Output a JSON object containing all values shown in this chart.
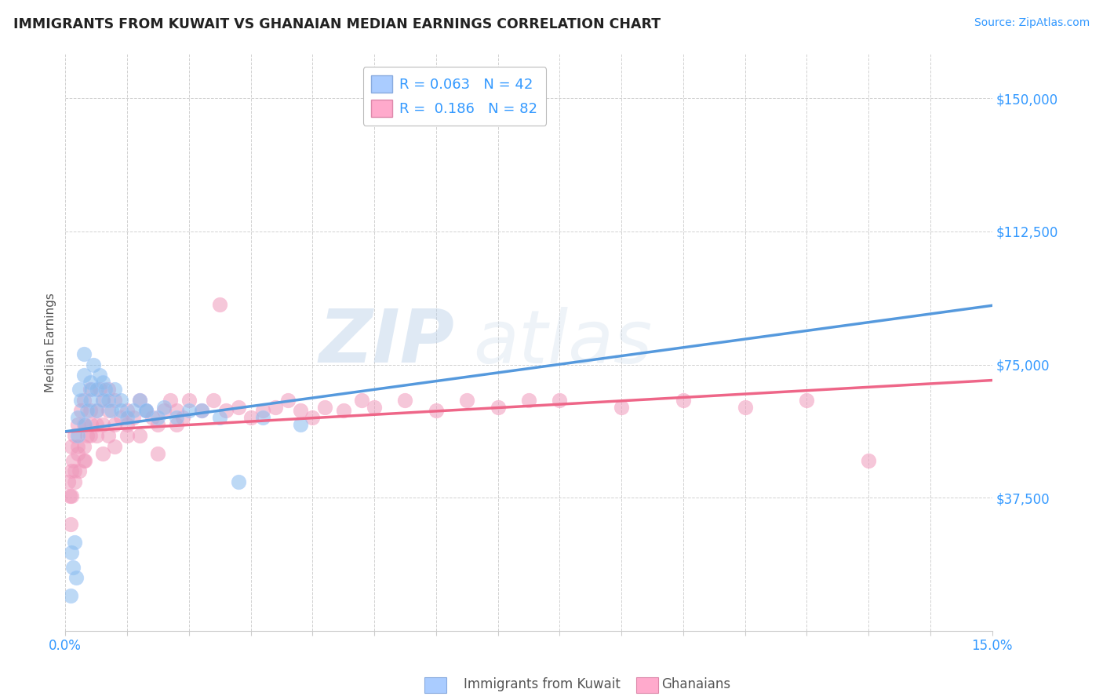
{
  "title": "IMMIGRANTS FROM KUWAIT VS GHANAIAN MEDIAN EARNINGS CORRELATION CHART",
  "source_text": "Source: ZipAtlas.com",
  "ylabel": "Median Earnings",
  "xlim": [
    0.0,
    0.15
  ],
  "ylim": [
    0,
    162500
  ],
  "yticks": [
    0,
    37500,
    75000,
    112500,
    150000
  ],
  "ytick_labels": [
    "",
    "$37,500",
    "$75,000",
    "$112,500",
    "$150,000"
  ],
  "background_color": "#ffffff",
  "grid_color": "#cccccc",
  "watermark_text1": "ZIP",
  "watermark_text2": "atlas",
  "color_kuwait": "#aaccff",
  "color_ghana": "#ffaacc",
  "line_color_kuwait": "#5599dd",
  "line_color_ghana": "#ee6688",
  "scatter_color_kuwait": "#88bbee",
  "scatter_color_ghana": "#ee99bb",
  "kuwait_x": [
    0.0008,
    0.001,
    0.0012,
    0.0015,
    0.0018,
    0.002,
    0.002,
    0.0022,
    0.0025,
    0.003,
    0.003,
    0.0032,
    0.0035,
    0.004,
    0.004,
    0.0042,
    0.0045,
    0.005,
    0.005,
    0.0055,
    0.006,
    0.006,
    0.0065,
    0.007,
    0.0075,
    0.008,
    0.009,
    0.009,
    0.01,
    0.011,
    0.012,
    0.013,
    0.013,
    0.015,
    0.016,
    0.018,
    0.02,
    0.022,
    0.025,
    0.028,
    0.032,
    0.038
  ],
  "kuwait_y": [
    10000,
    22000,
    18000,
    25000,
    15000,
    55000,
    60000,
    68000,
    65000,
    72000,
    78000,
    58000,
    62000,
    65000,
    70000,
    68000,
    75000,
    62000,
    68000,
    72000,
    65000,
    70000,
    68000,
    65000,
    62000,
    68000,
    62000,
    65000,
    60000,
    62000,
    65000,
    62000,
    62000,
    60000,
    63000,
    60000,
    62000,
    62000,
    60000,
    42000,
    60000,
    58000
  ],
  "ghana_x": [
    0.0005,
    0.0007,
    0.001,
    0.001,
    0.0012,
    0.0015,
    0.0015,
    0.002,
    0.002,
    0.0022,
    0.0025,
    0.003,
    0.003,
    0.003,
    0.0032,
    0.0035,
    0.004,
    0.004,
    0.0042,
    0.005,
    0.005,
    0.0055,
    0.006,
    0.006,
    0.007,
    0.007,
    0.008,
    0.008,
    0.009,
    0.01,
    0.01,
    0.011,
    0.012,
    0.013,
    0.014,
    0.015,
    0.016,
    0.017,
    0.018,
    0.019,
    0.02,
    0.022,
    0.024,
    0.026,
    0.028,
    0.03,
    0.032,
    0.034,
    0.036,
    0.038,
    0.04,
    0.042,
    0.045,
    0.048,
    0.05,
    0.055,
    0.06,
    0.065,
    0.07,
    0.075,
    0.08,
    0.09,
    0.1,
    0.11,
    0.12,
    0.13,
    0.0008,
    0.001,
    0.0015,
    0.002,
    0.003,
    0.004,
    0.005,
    0.006,
    0.007,
    0.008,
    0.01,
    0.012,
    0.015,
    0.018,
    0.025
  ],
  "ghana_y": [
    42000,
    38000,
    45000,
    52000,
    48000,
    42000,
    55000,
    50000,
    58000,
    45000,
    62000,
    52000,
    58000,
    65000,
    48000,
    55000,
    62000,
    68000,
    58000,
    55000,
    62000,
    68000,
    58000,
    65000,
    62000,
    68000,
    58000,
    65000,
    60000,
    55000,
    62000,
    60000,
    65000,
    62000,
    60000,
    58000,
    62000,
    65000,
    62000,
    60000,
    65000,
    62000,
    65000,
    62000,
    63000,
    60000,
    62000,
    63000,
    65000,
    62000,
    60000,
    63000,
    62000,
    65000,
    63000,
    65000,
    62000,
    65000,
    63000,
    65000,
    65000,
    63000,
    65000,
    63000,
    65000,
    48000,
    30000,
    38000,
    45000,
    52000,
    48000,
    55000,
    58000,
    50000,
    55000,
    52000,
    58000,
    55000,
    50000,
    58000,
    92000
  ]
}
